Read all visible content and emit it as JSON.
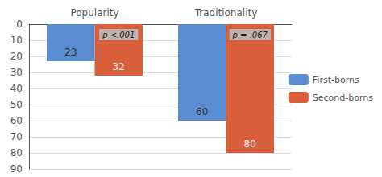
{
  "chart_data": {
    "type": "bar",
    "categories": [
      "Popularity",
      "Traditionality"
    ],
    "series": [
      {
        "name": "First-borns",
        "color": "#5B8BD0",
        "values": [
          23,
          60
        ]
      },
      {
        "name": "Second-borns",
        "color": "#D95F3B",
        "values": [
          32,
          80
        ]
      }
    ],
    "ylim": [
      90,
      0
    ],
    "yticks": [
      0,
      10,
      20,
      30,
      40,
      50,
      60,
      70,
      80,
      90
    ],
    "grid": true,
    "legend": "right",
    "data_labels": true,
    "annotations": [
      {
        "text": "p <.001",
        "category": "Popularity"
      },
      {
        "text": "p = .067",
        "category": "Traditionality"
      }
    ]
  }
}
